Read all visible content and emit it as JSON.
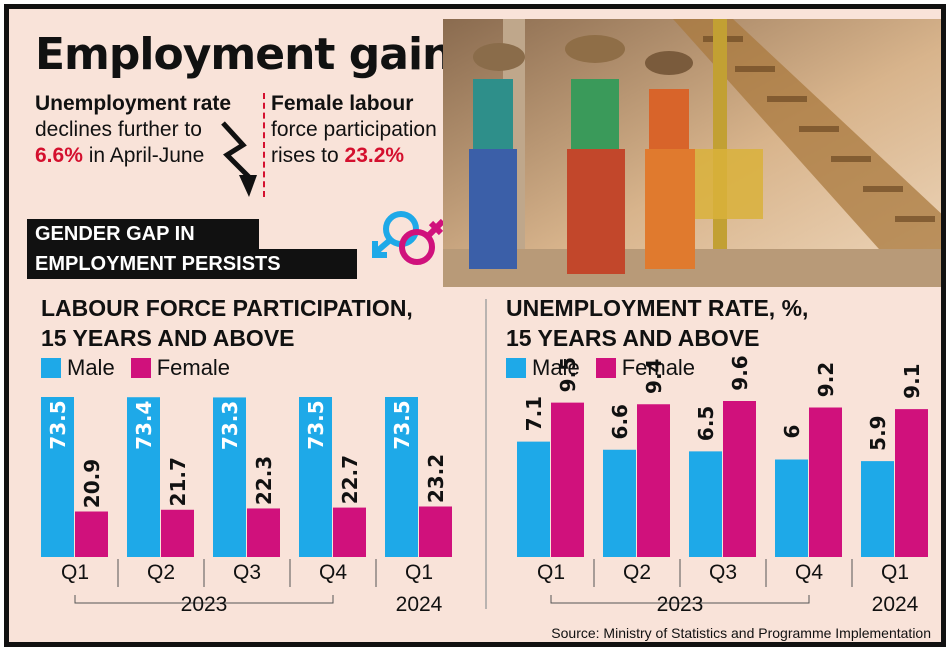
{
  "headline": "Employment gain",
  "left_lead": {
    "part1": "Unemployment rate",
    "part2": " declines further to ",
    "value": "6.6%",
    "part3": " in April-June"
  },
  "right_lead": {
    "part1": "Female labour",
    "part2": " force participation rises to ",
    "value": "23.2%"
  },
  "band": {
    "line1": "GENDER GAP IN",
    "line2": "EMPLOYMENT PERSISTS"
  },
  "source": "Source: Ministry of Statistics and Programme Implementation",
  "colors": {
    "male": "#1ea9e8",
    "female": "#d0117c",
    "accent_red": "#d4102e",
    "background": "#f9e3d9"
  },
  "chart_data": [
    {
      "type": "bar",
      "title_line1": "LABOUR FORCE PARTICIPATION,",
      "title_line2": "15 YEARS AND ABOVE",
      "categories": [
        "Q1",
        "Q2",
        "Q3",
        "Q4",
        "Q1"
      ],
      "year_groups": [
        {
          "label": "2023",
          "quarters": 4
        },
        {
          "label": "2024",
          "quarters": 1
        }
      ],
      "series": [
        {
          "name": "Male",
          "values": [
            73.5,
            73.4,
            73.3,
            73.5,
            73.5
          ]
        },
        {
          "name": "Female",
          "values": [
            20.9,
            21.7,
            22.3,
            22.7,
            23.2
          ]
        }
      ],
      "legend": "top-left",
      "grid": false
    },
    {
      "type": "bar",
      "title_line1": "UNEMPLOYMENT RATE, %,",
      "title_line2": "15 YEARS AND ABOVE",
      "categories": [
        "Q1",
        "Q2",
        "Q3",
        "Q4",
        "Q1"
      ],
      "year_groups": [
        {
          "label": "2023",
          "quarters": 4
        },
        {
          "label": "2024",
          "quarters": 1
        }
      ],
      "series": [
        {
          "name": "Male",
          "values": [
            7.1,
            6.6,
            6.5,
            6,
            5.9
          ]
        },
        {
          "name": "Female",
          "values": [
            9.5,
            9.4,
            9.6,
            9.2,
            9.1
          ]
        }
      ],
      "legend": "top-left",
      "grid": false
    }
  ]
}
